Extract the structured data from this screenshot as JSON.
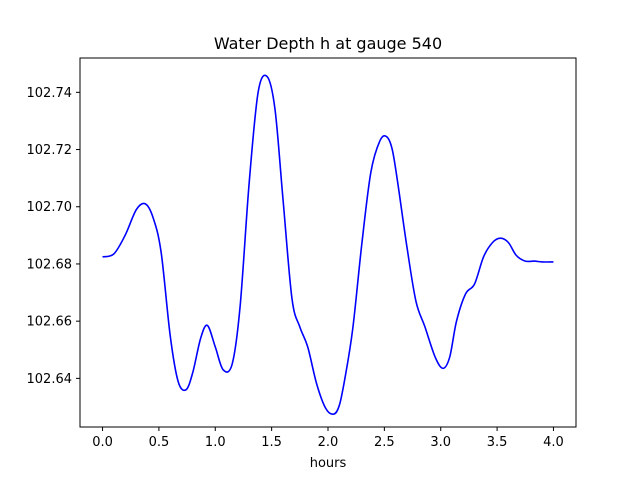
{
  "chart_data": {
    "type": "line",
    "title": "Water Depth h at gauge 540",
    "xlabel": "hours",
    "ylabel": "",
    "xlim": [
      -0.2,
      4.2
    ],
    "ylim": [
      102.623,
      102.752
    ],
    "xticks": [
      0.0,
      0.5,
      1.0,
      1.5,
      2.0,
      2.5,
      3.0,
      3.5,
      4.0
    ],
    "xtick_labels": [
      "0.0",
      "0.5",
      "1.0",
      "1.5",
      "2.0",
      "2.5",
      "3.0",
      "3.5",
      "4.0"
    ],
    "yticks": [
      102.64,
      102.66,
      102.68,
      102.7,
      102.72,
      102.74
    ],
    "ytick_labels": [
      "102.64",
      "102.66",
      "102.68",
      "102.70",
      "102.72",
      "102.74"
    ],
    "grid": false,
    "series": [
      {
        "color": "#0000ff",
        "x": [
          0.0,
          0.1,
          0.2,
          0.3,
          0.38,
          0.45,
          0.52,
          0.6,
          0.67,
          0.74,
          0.8,
          0.87,
          0.93,
          1.0,
          1.07,
          1.15,
          1.22,
          1.3,
          1.38,
          1.46,
          1.53,
          1.6,
          1.68,
          1.75,
          1.82,
          1.9,
          1.98,
          2.05,
          2.1,
          2.15,
          2.22,
          2.3,
          2.38,
          2.46,
          2.52,
          2.57,
          2.62,
          2.7,
          2.78,
          2.86,
          2.95,
          3.02,
          3.08,
          3.14,
          3.22,
          3.3,
          3.38,
          3.46,
          3.53,
          3.6,
          3.67,
          3.75,
          3.83,
          3.9,
          4.0
        ],
        "y": [
          102.6825,
          102.6835,
          102.69,
          102.699,
          102.701,
          102.696,
          102.684,
          102.655,
          102.639,
          102.636,
          102.642,
          102.654,
          102.6585,
          102.651,
          102.643,
          102.645,
          102.665,
          102.708,
          102.74,
          102.7455,
          102.734,
          102.703,
          102.668,
          102.658,
          102.651,
          102.638,
          102.6295,
          102.6275,
          102.6305,
          102.64,
          102.6575,
          102.687,
          102.712,
          102.723,
          102.7245,
          102.72,
          102.708,
          102.686,
          102.667,
          102.658,
          102.6475,
          102.6435,
          102.6475,
          102.66,
          102.6695,
          102.673,
          102.6825,
          102.6875,
          102.689,
          102.6875,
          102.683,
          102.681,
          102.681,
          102.6807,
          102.6807
        ]
      }
    ]
  }
}
